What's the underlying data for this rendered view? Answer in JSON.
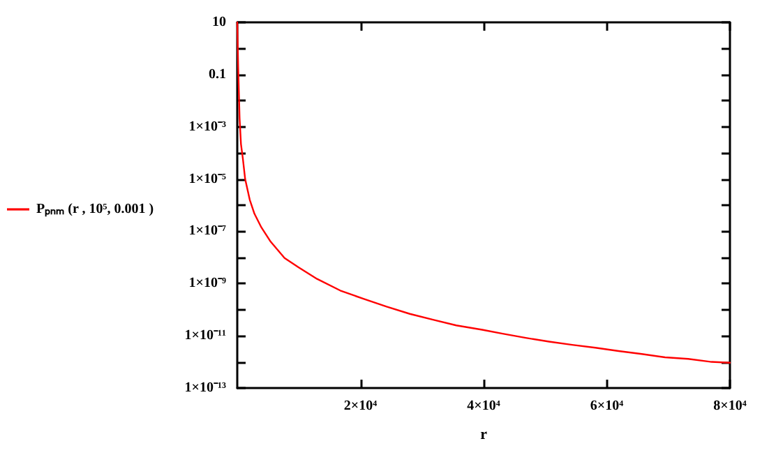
{
  "chart_data": {
    "type": "line",
    "xlabel": "r",
    "log": "y",
    "grid": false,
    "legend": "left",
    "marker": "none",
    "line_style": "solid",
    "xlim": [
      0,
      80000
    ],
    "ylim": [
      1e-13,
      10
    ],
    "xticks": [
      {
        "value": 20000,
        "label": "2×10⁴"
      },
      {
        "value": 40000,
        "label": "4×10⁴"
      },
      {
        "value": 60000,
        "label": "6×10⁴"
      },
      {
        "value": 80000,
        "label": "8×10⁴"
      }
    ],
    "yticks": [
      10,
      {
        "value": 1,
        "label": null
      },
      0.1,
      {
        "value": 0.01,
        "label": null
      },
      {
        "value": 0.001,
        "label": "1×10⁻³"
      },
      {
        "value": 0.0001,
        "label": null
      },
      {
        "value": 1e-05,
        "label": "1×10⁻⁵"
      },
      {
        "value": 1e-06,
        "label": null
      },
      {
        "value": 1e-07,
        "label": "1×10⁻⁷"
      },
      {
        "value": 1e-08,
        "label": null
      },
      {
        "value": 1e-09,
        "label": "1×10⁻⁹"
      },
      {
        "value": 1e-10,
        "label": null
      },
      {
        "value": 1e-11,
        "label": "1×10⁻¹¹"
      },
      {
        "value": 1e-12,
        "label": null
      },
      {
        "value": 1e-13,
        "label": "1×10⁻¹³"
      }
    ],
    "series": [
      {
        "name": "Pₚₙₘ (r , 10⁵, 0.001 )",
        "color": "#ff0000",
        "x": [
          0,
          150,
          377,
          600,
          900,
          1280,
          2030,
          2790,
          3920,
          5420,
          7680,
          9940,
          12960,
          16720,
          20490,
          24250,
          28020,
          31790,
          35560,
          39770,
          43090,
          46850,
          50620,
          54390,
          58150,
          61920,
          65690,
          69460,
          73220,
          76990,
          80000
        ],
        "values": [
          10,
          0.19,
          0.0021,
          0.00022,
          6.3e-05,
          1e-05,
          1.6e-06,
          4.7e-07,
          1.4e-07,
          4e-08,
          9.5e-09,
          4.2e-09,
          1.5e-09,
          5.4e-10,
          2.6e-10,
          1.3e-10,
          6.9e-11,
          4.1e-11,
          2.5e-11,
          1.7e-11,
          1.2e-11,
          8.3e-12,
          6e-12,
          4.5e-12,
          3.5e-12,
          2.6e-12,
          2e-12,
          1.5e-12,
          1.3e-12,
          1e-12,
          9.3e-13
        ]
      }
    ]
  }
}
